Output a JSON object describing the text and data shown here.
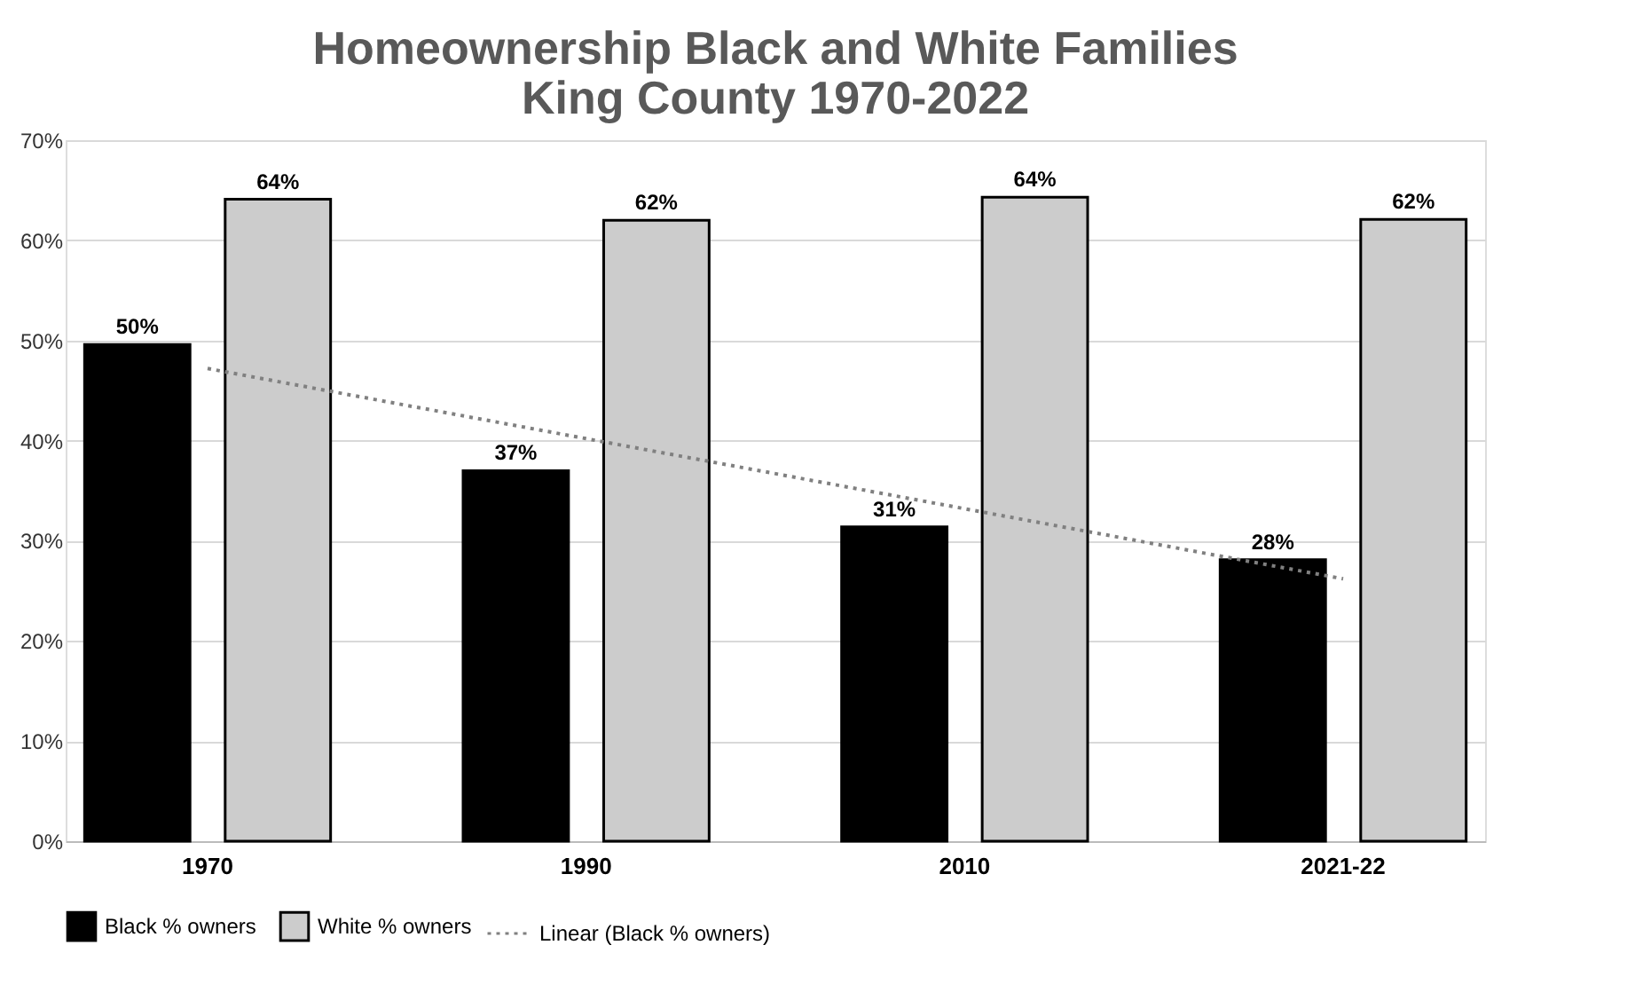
{
  "chart_data": {
    "type": "bar",
    "title": "Homeownership Black and White Families\nKing County 1970-2022",
    "categories": [
      "1970",
      "1990",
      "2010",
      "2021-22"
    ],
    "series": [
      {
        "name": "Black % owners",
        "color": "#000000",
        "values": [
          49.6,
          37,
          31.4,
          28.1
        ],
        "value_labels": [
          "50%",
          "37%",
          "31%",
          "28%"
        ]
      },
      {
        "name": "White % owners",
        "color": "#cccccc",
        "values": [
          64.1,
          62,
          64.3,
          62.1
        ],
        "value_labels": [
          "64%",
          "62%",
          "64%",
          "62%"
        ]
      },
      {
        "name": "Linear (Black % owners)",
        "type": "line",
        "color": "#808080",
        "line_style": "dotted",
        "values": [
          47.2,
          40.2,
          33.2,
          26.2
        ]
      }
    ],
    "ylim": [
      0,
      70
    ],
    "yticks": [
      {
        "value": 0,
        "label": "0%"
      },
      {
        "value": 10,
        "label": "10%"
      },
      {
        "value": 20,
        "label": "20%"
      },
      {
        "value": 30,
        "label": "30%"
      },
      {
        "value": 40,
        "label": "40%"
      },
      {
        "value": 50,
        "label": "50%"
      },
      {
        "value": 60,
        "label": "60%"
      },
      {
        "value": 70,
        "label": "70%"
      }
    ],
    "grid": "y",
    "legend": "bottom"
  }
}
